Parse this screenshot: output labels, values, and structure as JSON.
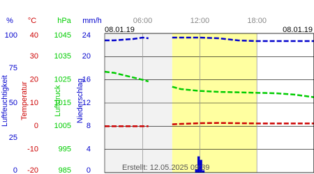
{
  "chart_data": {
    "type": "line",
    "date_left": "08.01.19",
    "date_right": "08.01.19",
    "footer": "Erstellt: 12.05.2025 09:39",
    "xlim": [
      2,
      24
    ],
    "xticks": [
      {
        "value": 6,
        "label": "06:00"
      },
      {
        "value": 12,
        "label": "12:00"
      },
      {
        "value": 18,
        "label": "18:00"
      }
    ],
    "daylight": [
      9.1,
      18
    ],
    "y_axes": [
      {
        "unit": "%",
        "label": "Luftfeuchtigkeit",
        "color": "#0000cc",
        "ylim": [
          0,
          100
        ],
        "yticks": [
          0,
          25,
          50,
          75,
          100
        ]
      },
      {
        "unit": "°C",
        "label": "Temperatur",
        "color": "#cc0000",
        "ylim": [
          -20,
          40
        ],
        "yticks": [
          -20,
          -10,
          0,
          10,
          20,
          30,
          40
        ]
      },
      {
        "unit": "hPa",
        "label": "Luftdruck",
        "color": "#00cc00",
        "ylim": [
          985,
          1045
        ],
        "yticks": [
          985,
          995,
          1005,
          1015,
          1025,
          1035,
          1045
        ]
      },
      {
        "unit": "mm/h",
        "label": "Niederschlag",
        "color": "#0000cc",
        "ylim": [
          0,
          24
        ],
        "yticks": [
          0,
          4,
          8,
          12,
          16,
          20,
          24
        ]
      }
    ],
    "x": [
      2,
      3,
      4,
      5,
      6,
      6.6,
      8,
      9.1,
      10,
      12,
      14,
      16,
      18,
      20,
      22,
      24
    ],
    "series": [
      {
        "name": "Luftfeuchtigkeit",
        "axis": 0,
        "color": "#0000cc",
        "values": [
          95,
          95,
          95.5,
          96,
          97,
          96.5,
          null,
          97,
          97,
          97,
          96.5,
          95,
          94.5,
          94.5,
          94.5,
          94.5
        ]
      },
      {
        "name": "Temperatur",
        "axis": 1,
        "color": "#cc0000",
        "values": [
          0,
          0,
          0,
          0,
          0,
          0,
          null,
          0.8,
          1,
          1.3,
          1.4,
          1.3,
          1.2,
          1.2,
          1.2,
          1.2
        ]
      },
      {
        "name": "Luftdruck",
        "axis": 2,
        "color": "#00cc00",
        "values": [
          1028.5,
          1028,
          1027,
          1026,
          1025,
          1024.3,
          null,
          1022,
          1021,
          1020.2,
          1019.8,
          1019.6,
          1019.4,
          1019.2,
          1018.6,
          1017.5
        ]
      }
    ],
    "precipitation": {
      "axis": 3,
      "color": "#0000cc",
      "x": [
        11.5,
        11.75,
        12,
        12.25
      ],
      "width": 0.25,
      "values": [
        0.6,
        2.8,
        2.2,
        0.4
      ]
    }
  }
}
